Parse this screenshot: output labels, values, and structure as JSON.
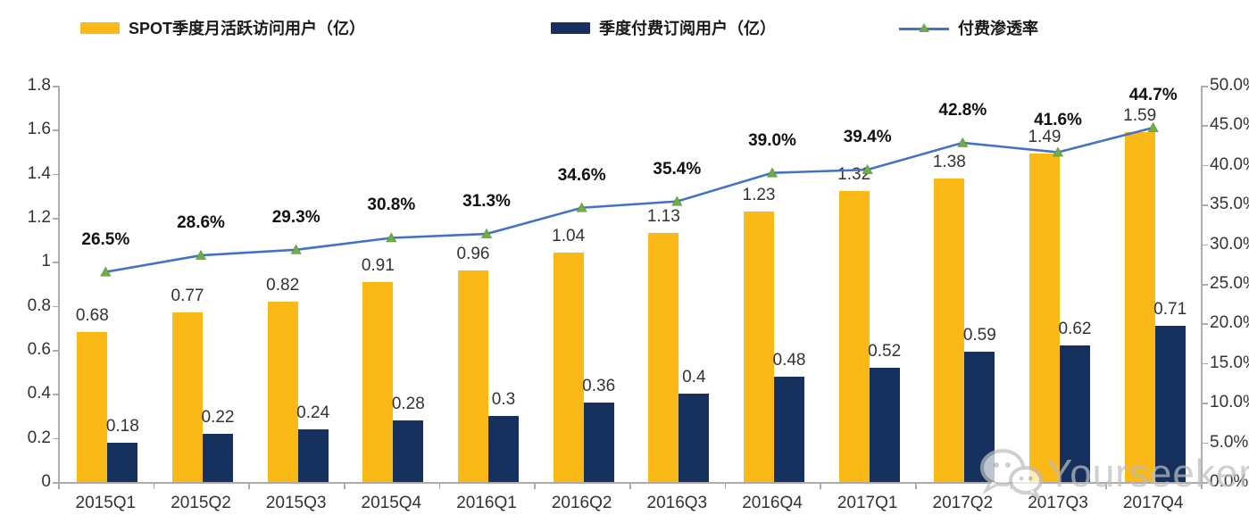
{
  "legend": {
    "mau_label": "SPOT季度月活跃访问用户（亿）",
    "subs_label": "季度付费订阅用户（亿）",
    "rate_label": "付费渗透率"
  },
  "colors": {
    "mau_bar": "#FBB917",
    "subs_bar": "#17315F",
    "rate_line": "#4472C4",
    "rate_marker": "#70AD47",
    "axis": "#ABABAB",
    "watermark": "#BDBDBD"
  },
  "watermark": {
    "text": "Yourseeker",
    "icon": "wechat-icon"
  },
  "chart_data": {
    "type": "bar+line combo",
    "title": "",
    "categories": [
      "2015Q1",
      "2015Q2",
      "2015Q3",
      "2015Q4",
      "2016Q1",
      "2016Q2",
      "2016Q3",
      "2016Q4",
      "2017Q1",
      "2017Q2",
      "2017Q3",
      "2017Q4"
    ],
    "series": [
      {
        "name": "SPOT季度月活跃访问用户（亿）",
        "type": "bar",
        "axis": "left",
        "values": [
          0.68,
          0.77,
          0.82,
          0.91,
          0.96,
          1.04,
          1.13,
          1.23,
          1.32,
          1.38,
          1.49,
          1.59
        ],
        "labels": [
          "0.68",
          "0.77",
          "0.82",
          "0.91",
          "0.96",
          "1.04",
          "1.13",
          "1.23",
          "1.32",
          "1.38",
          "1.49",
          "1.59"
        ]
      },
      {
        "name": "季度付费订阅用户（亿）",
        "type": "bar",
        "axis": "left",
        "values": [
          0.18,
          0.22,
          0.24,
          0.28,
          0.3,
          0.36,
          0.4,
          0.48,
          0.52,
          0.59,
          0.62,
          0.71
        ],
        "labels": [
          "0.18",
          "0.22",
          "0.24",
          "0.28",
          "0.3",
          "0.36",
          "0.4",
          "0.48",
          "0.52",
          "0.59",
          "0.62",
          "0.71"
        ]
      },
      {
        "name": "付费渗透率",
        "type": "line",
        "axis": "right",
        "values": [
          26.5,
          28.6,
          29.3,
          30.8,
          31.3,
          34.6,
          35.4,
          39.0,
          39.4,
          42.8,
          41.6,
          44.7
        ],
        "labels": [
          "26.5%",
          "28.6%",
          "29.3%",
          "30.8%",
          "31.3%",
          "34.6%",
          "35.4%",
          "39.0%",
          "39.4%",
          "42.8%",
          "41.6%",
          "44.7%"
        ]
      }
    ],
    "left_axis": {
      "min": 0,
      "max": 1.8,
      "tick_labels": [
        "0",
        "0.2",
        "0.4",
        "0.6",
        "0.8",
        "1",
        "1.2",
        "1.4",
        "1.6",
        "1.8"
      ]
    },
    "right_axis": {
      "min": 0,
      "max": 50,
      "tick_labels": [
        "0.0%",
        "5.0%",
        "10.0%",
        "15.0%",
        "20.0%",
        "25.0%",
        "30.0%",
        "35.0%",
        "40.0%",
        "45.0%",
        "50.0%"
      ]
    },
    "grid": false,
    "legend_position": "top"
  }
}
